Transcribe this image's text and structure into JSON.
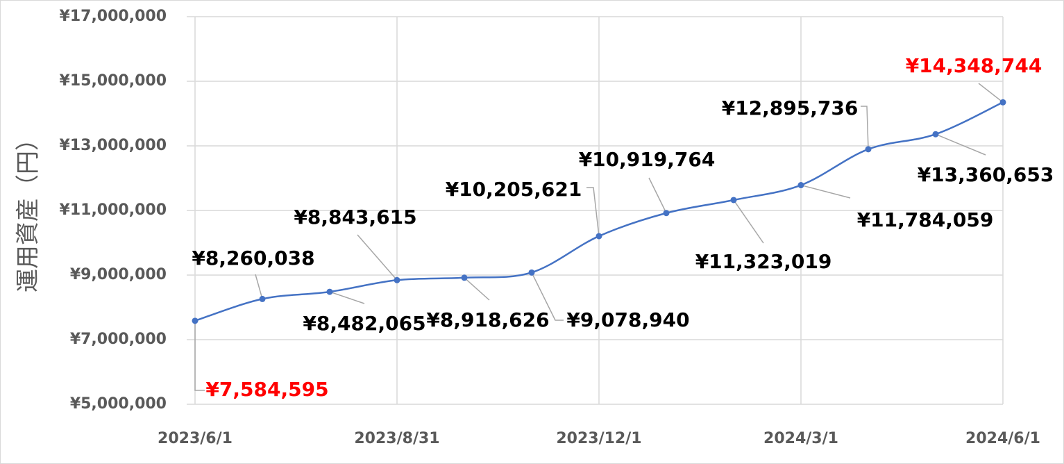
{
  "chart_data": {
    "type": "line",
    "y_axis_label": "運用資産（円）",
    "categories": [
      "2023/6/1",
      null,
      null,
      "2023/8/31",
      null,
      null,
      "2023/12/1",
      null,
      null,
      "2024/3/1",
      null,
      null,
      "2024/6/1"
    ],
    "series": [
      {
        "name": "運用資産",
        "color": "#4472c4",
        "values": [
          7584595,
          8260038,
          8482065,
          8843615,
          8918626,
          9078940,
          10205621,
          10919764,
          11323019,
          11784059,
          12895736,
          13360653,
          14348744
        ],
        "value_labels": [
          "¥7,584,595",
          "¥8,260,038",
          "¥8,482,065",
          "¥8,843,615",
          "¥8,918,626",
          "¥9,078,940",
          "¥10,205,621",
          "¥10,919,764",
          "¥11,323,019",
          "¥11,784,059",
          "¥12,895,736",
          "¥13,360,653",
          "¥14,348,744"
        ],
        "value_label_colors": [
          "#ff0000",
          "#000000",
          "#000000",
          "#000000",
          "#000000",
          "#000000",
          "#000000",
          "#000000",
          "#000000",
          "#000000",
          "#000000",
          "#000000",
          "#ff0000"
        ]
      }
    ],
    "ylim": [
      5000000,
      17000000
    ],
    "yticks": [
      {
        "value": 5000000,
        "label": "¥5,000,000"
      },
      {
        "value": 7000000,
        "label": "¥7,000,000"
      },
      {
        "value": 9000000,
        "label": "¥9,000,000"
      },
      {
        "value": 11000000,
        "label": "¥11,000,000"
      },
      {
        "value": 13000000,
        "label": "¥13,000,000"
      },
      {
        "value": 15000000,
        "label": "¥15,000,000"
      },
      {
        "value": 17000000,
        "label": "¥17,000,000"
      }
    ],
    "grid": true,
    "smooth": true
  }
}
